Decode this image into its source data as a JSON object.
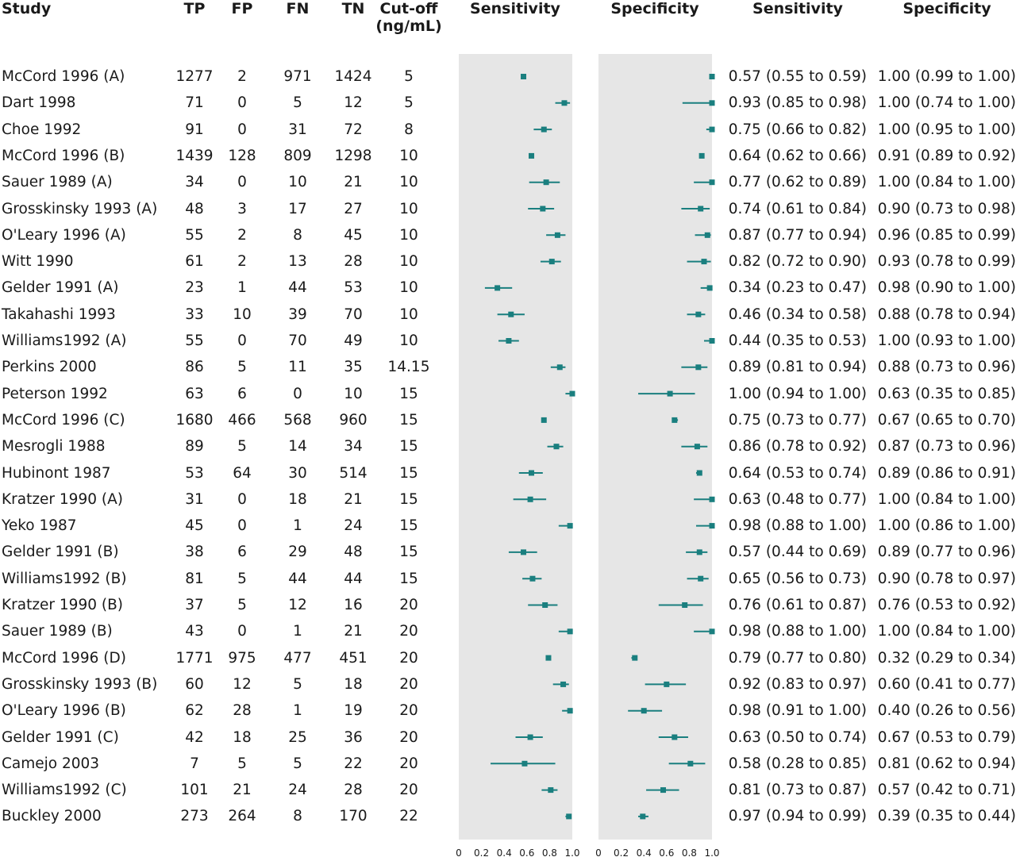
{
  "headers": {
    "study": "Study",
    "tp": "TP",
    "fp": "FP",
    "fn": "FN",
    "tn": "TN",
    "cutoff_line1": "Cut-off",
    "cutoff_line2": "(ng/mL)",
    "sens_plot": "Sensitivity",
    "spec_plot": "Specificity",
    "sens_ci": "Sensitivity",
    "spec_ci": "Specificity"
  },
  "chart_data": {
    "type": "forest",
    "panels": [
      "Sensitivity",
      "Specificity"
    ],
    "xlim": [
      0,
      1
    ],
    "x_ticks": [
      "0",
      "0.2",
      "0.4",
      "0.6",
      "0.8",
      "1.0"
    ],
    "accent_color": "#1a7f7f",
    "panel_bg": "#e6e6e6",
    "rows": [
      {
        "study": "McCord 1996 (A)",
        "tp": "1277",
        "fp": "2",
        "fn": "971",
        "tn": "1424",
        "cutoff": "5",
        "sens": 0.57,
        "sens_lo": 0.55,
        "sens_hi": 0.59,
        "spec": 1.0,
        "spec_lo": 0.99,
        "spec_hi": 1.0,
        "sens_text": "0.57 (0.55 to 0.59)",
        "spec_text": "1.00 (0.99 to 1.00)"
      },
      {
        "study": "Dart 1998",
        "tp": "71",
        "fp": "0",
        "fn": "5",
        "tn": "12",
        "cutoff": "5",
        "sens": 0.93,
        "sens_lo": 0.85,
        "sens_hi": 0.98,
        "spec": 1.0,
        "spec_lo": 0.74,
        "spec_hi": 1.0,
        "sens_text": "0.93 (0.85 to 0.98)",
        "spec_text": "1.00 (0.74 to 1.00)"
      },
      {
        "study": "Choe 1992",
        "tp": "91",
        "fp": "0",
        "fn": "31",
        "tn": "72",
        "cutoff": "8",
        "sens": 0.75,
        "sens_lo": 0.66,
        "sens_hi": 0.82,
        "spec": 1.0,
        "spec_lo": 0.95,
        "spec_hi": 1.0,
        "sens_text": "0.75 (0.66 to 0.82)",
        "spec_text": "1.00 (0.95 to 1.00)"
      },
      {
        "study": "McCord 1996 (B)",
        "tp": "1439",
        "fp": "128",
        "fn": "809",
        "tn": "1298",
        "cutoff": "10",
        "sens": 0.64,
        "sens_lo": 0.62,
        "sens_hi": 0.66,
        "spec": 0.91,
        "spec_lo": 0.89,
        "spec_hi": 0.92,
        "sens_text": "0.64 (0.62 to 0.66)",
        "spec_text": "0.91 (0.89 to 0.92)"
      },
      {
        "study": "Sauer 1989 (A)",
        "tp": "34",
        "fp": "0",
        "fn": "10",
        "tn": "21",
        "cutoff": "10",
        "sens": 0.77,
        "sens_lo": 0.62,
        "sens_hi": 0.89,
        "spec": 1.0,
        "spec_lo": 0.84,
        "spec_hi": 1.0,
        "sens_text": "0.77 (0.62 to 0.89)",
        "spec_text": "1.00 (0.84 to 1.00)"
      },
      {
        "study": "Grosskinsky 1993 (A)",
        "tp": "48",
        "fp": "3",
        "fn": "17",
        "tn": "27",
        "cutoff": "10",
        "sens": 0.74,
        "sens_lo": 0.61,
        "sens_hi": 0.84,
        "spec": 0.9,
        "spec_lo": 0.73,
        "spec_hi": 0.98,
        "sens_text": "0.74 (0.61 to 0.84)",
        "spec_text": "0.90 (0.73 to 0.98)"
      },
      {
        "study": "O'Leary 1996 (A)",
        "tp": "55",
        "fp": "2",
        "fn": "8",
        "tn": "45",
        "cutoff": "10",
        "sens": 0.87,
        "sens_lo": 0.77,
        "sens_hi": 0.94,
        "spec": 0.96,
        "spec_lo": 0.85,
        "spec_hi": 0.99,
        "sens_text": "0.87 (0.77 to 0.94)",
        "spec_text": "0.96 (0.85 to 0.99)"
      },
      {
        "study": "Witt 1990",
        "tp": "61",
        "fp": "2",
        "fn": "13",
        "tn": "28",
        "cutoff": "10",
        "sens": 0.82,
        "sens_lo": 0.72,
        "sens_hi": 0.9,
        "spec": 0.93,
        "spec_lo": 0.78,
        "spec_hi": 0.99,
        "sens_text": "0.82 (0.72 to 0.90)",
        "spec_text": "0.93 (0.78 to 0.99)"
      },
      {
        "study": "Gelder 1991 (A)",
        "tp": "23",
        "fp": "1",
        "fn": "44",
        "tn": "53",
        "cutoff": "10",
        "sens": 0.34,
        "sens_lo": 0.23,
        "sens_hi": 0.47,
        "spec": 0.98,
        "spec_lo": 0.9,
        "spec_hi": 1.0,
        "sens_text": "0.34 (0.23 to 0.47)",
        "spec_text": "0.98 (0.90 to 1.00)"
      },
      {
        "study": "Takahashi 1993",
        "tp": "33",
        "fp": "10",
        "fn": "39",
        "tn": "70",
        "cutoff": "10",
        "sens": 0.46,
        "sens_lo": 0.34,
        "sens_hi": 0.58,
        "spec": 0.88,
        "spec_lo": 0.78,
        "spec_hi": 0.94,
        "sens_text": "0.46 (0.34 to 0.58)",
        "spec_text": "0.88 (0.78 to 0.94)"
      },
      {
        "study": "Williams1992 (A)",
        "tp": "55",
        "fp": "0",
        "fn": "70",
        "tn": "49",
        "cutoff": "10",
        "sens": 0.44,
        "sens_lo": 0.35,
        "sens_hi": 0.53,
        "spec": 1.0,
        "spec_lo": 0.93,
        "spec_hi": 1.0,
        "sens_text": "0.44 (0.35 to 0.53)",
        "spec_text": "1.00 (0.93 to 1.00)"
      },
      {
        "study": "Perkins 2000",
        "tp": "86",
        "fp": "5",
        "fn": "11",
        "tn": "35",
        "cutoff": "14.15",
        "sens": 0.89,
        "sens_lo": 0.81,
        "sens_hi": 0.94,
        "spec": 0.88,
        "spec_lo": 0.73,
        "spec_hi": 0.96,
        "sens_text": "0.89 (0.81 to 0.94)",
        "spec_text": "0.88 (0.73 to 0.96)"
      },
      {
        "study": "Peterson 1992",
        "tp": "63",
        "fp": "6",
        "fn": "0",
        "tn": "10",
        "cutoff": "15",
        "sens": 1.0,
        "sens_lo": 0.94,
        "sens_hi": 1.0,
        "spec": 0.63,
        "spec_lo": 0.35,
        "spec_hi": 0.85,
        "sens_text": "1.00 (0.94 to 1.00)",
        "spec_text": "0.63 (0.35 to 0.85)"
      },
      {
        "study": "McCord 1996 (C)",
        "tp": "1680",
        "fp": "466",
        "fn": "568",
        "tn": "960",
        "cutoff": "15",
        "sens": 0.75,
        "sens_lo": 0.73,
        "sens_hi": 0.77,
        "spec": 0.67,
        "spec_lo": 0.65,
        "spec_hi": 0.7,
        "sens_text": "0.75 (0.73 to 0.77)",
        "spec_text": "0.67 (0.65 to 0.70)"
      },
      {
        "study": "Mesrogli 1988",
        "tp": "89",
        "fp": "5",
        "fn": "14",
        "tn": "34",
        "cutoff": "15",
        "sens": 0.86,
        "sens_lo": 0.78,
        "sens_hi": 0.92,
        "spec": 0.87,
        "spec_lo": 0.73,
        "spec_hi": 0.96,
        "sens_text": "0.86 (0.78 to 0.92)",
        "spec_text": "0.87 (0.73 to 0.96)"
      },
      {
        "study": "Hubinont 1987",
        "tp": "53",
        "fp": "64",
        "fn": "30",
        "tn": "514",
        "cutoff": "15",
        "sens": 0.64,
        "sens_lo": 0.53,
        "sens_hi": 0.74,
        "spec": 0.89,
        "spec_lo": 0.86,
        "spec_hi": 0.91,
        "sens_text": "0.64 (0.53 to 0.74)",
        "spec_text": "0.89 (0.86 to 0.91)"
      },
      {
        "study": "Kratzer 1990 (A)",
        "tp": "31",
        "fp": "0",
        "fn": "18",
        "tn": "21",
        "cutoff": "15",
        "sens": 0.63,
        "sens_lo": 0.48,
        "sens_hi": 0.77,
        "spec": 1.0,
        "spec_lo": 0.84,
        "spec_hi": 1.0,
        "sens_text": "0.63 (0.48 to 0.77)",
        "spec_text": "1.00 (0.84 to 1.00)"
      },
      {
        "study": "Yeko 1987",
        "tp": "45",
        "fp": "0",
        "fn": "1",
        "tn": "24",
        "cutoff": "15",
        "sens": 0.98,
        "sens_lo": 0.88,
        "sens_hi": 1.0,
        "spec": 1.0,
        "spec_lo": 0.86,
        "spec_hi": 1.0,
        "sens_text": "0.98 (0.88 to 1.00)",
        "spec_text": "1.00 (0.86 to 1.00)"
      },
      {
        "study": "Gelder 1991 (B)",
        "tp": "38",
        "fp": "6",
        "fn": "29",
        "tn": "48",
        "cutoff": "15",
        "sens": 0.57,
        "sens_lo": 0.44,
        "sens_hi": 0.69,
        "spec": 0.89,
        "spec_lo": 0.77,
        "spec_hi": 0.96,
        "sens_text": "0.57 (0.44 to 0.69)",
        "spec_text": "0.89 (0.77 to 0.96)"
      },
      {
        "study": "Williams1992 (B)",
        "tp": "81",
        "fp": "5",
        "fn": "44",
        "tn": "44",
        "cutoff": "15",
        "sens": 0.65,
        "sens_lo": 0.56,
        "sens_hi": 0.73,
        "spec": 0.9,
        "spec_lo": 0.78,
        "spec_hi": 0.97,
        "sens_text": "0.65 (0.56 to 0.73)",
        "spec_text": "0.90 (0.78 to 0.97)"
      },
      {
        "study": "Kratzer 1990 (B)",
        "tp": "37",
        "fp": "5",
        "fn": "12",
        "tn": "16",
        "cutoff": "20",
        "sens": 0.76,
        "sens_lo": 0.61,
        "sens_hi": 0.87,
        "spec": 0.76,
        "spec_lo": 0.53,
        "spec_hi": 0.92,
        "sens_text": "0.76 (0.61 to 0.87)",
        "spec_text": "0.76 (0.53 to 0.92)"
      },
      {
        "study": "Sauer 1989 (B)",
        "tp": "43",
        "fp": "0",
        "fn": "1",
        "tn": "21",
        "cutoff": "20",
        "sens": 0.98,
        "sens_lo": 0.88,
        "sens_hi": 1.0,
        "spec": 1.0,
        "spec_lo": 0.84,
        "spec_hi": 1.0,
        "sens_text": "0.98 (0.88 to 1.00)",
        "spec_text": "1.00 (0.84 to 1.00)"
      },
      {
        "study": "McCord 1996 (D)",
        "tp": "1771",
        "fp": "975",
        "fn": "477",
        "tn": "451",
        "cutoff": "20",
        "sens": 0.79,
        "sens_lo": 0.77,
        "sens_hi": 0.8,
        "spec": 0.32,
        "spec_lo": 0.29,
        "spec_hi": 0.34,
        "sens_text": "0.79 (0.77 to 0.80)",
        "spec_text": "0.32 (0.29 to 0.34)"
      },
      {
        "study": "Grosskinsky 1993 (B)",
        "tp": "60",
        "fp": "12",
        "fn": "5",
        "tn": "18",
        "cutoff": "20",
        "sens": 0.92,
        "sens_lo": 0.83,
        "sens_hi": 0.97,
        "spec": 0.6,
        "spec_lo": 0.41,
        "spec_hi": 0.77,
        "sens_text": "0.92 (0.83 to 0.97)",
        "spec_text": "0.60 (0.41 to 0.77)"
      },
      {
        "study": "O'Leary 1996  (B)",
        "tp": "62",
        "fp": "28",
        "fn": "1",
        "tn": "19",
        "cutoff": "20",
        "sens": 0.98,
        "sens_lo": 0.91,
        "sens_hi": 1.0,
        "spec": 0.4,
        "spec_lo": 0.26,
        "spec_hi": 0.56,
        "sens_text": "0.98 (0.91 to 1.00)",
        "spec_text": "0.40 (0.26 to 0.56)"
      },
      {
        "study": "Gelder 1991 (C)",
        "tp": "42",
        "fp": "18",
        "fn": "25",
        "tn": "36",
        "cutoff": "20",
        "sens": 0.63,
        "sens_lo": 0.5,
        "sens_hi": 0.74,
        "spec": 0.67,
        "spec_lo": 0.53,
        "spec_hi": 0.79,
        "sens_text": "0.63 (0.50 to 0.74)",
        "spec_text": "0.67 (0.53 to 0.79)"
      },
      {
        "study": "Camejo 2003",
        "tp": "7",
        "fp": "5",
        "fn": "5",
        "tn": "22",
        "cutoff": "20",
        "sens": 0.58,
        "sens_lo": 0.28,
        "sens_hi": 0.85,
        "spec": 0.81,
        "spec_lo": 0.62,
        "spec_hi": 0.94,
        "sens_text": "0.58 (0.28 to 0.85)",
        "spec_text": "0.81 (0.62 to 0.94)"
      },
      {
        "study": "Williams1992 (C)",
        "tp": "101",
        "fp": "21",
        "fn": "24",
        "tn": "28",
        "cutoff": "20",
        "sens": 0.81,
        "sens_lo": 0.73,
        "sens_hi": 0.87,
        "spec": 0.57,
        "spec_lo": 0.42,
        "spec_hi": 0.71,
        "sens_text": "0.81 (0.73 to 0.87)",
        "spec_text": "0.57 (0.42 to 0.71)"
      },
      {
        "study": "Buckley 2000",
        "tp": "273",
        "fp": "264",
        "fn": "8",
        "tn": "170",
        "cutoff": "22",
        "sens": 0.97,
        "sens_lo": 0.94,
        "sens_hi": 0.99,
        "spec": 0.39,
        "spec_lo": 0.35,
        "spec_hi": 0.44,
        "sens_text": "0.97 (0.94 to 0.99)",
        "spec_text": "0.39 (0.35 to 0.44)"
      }
    ]
  }
}
